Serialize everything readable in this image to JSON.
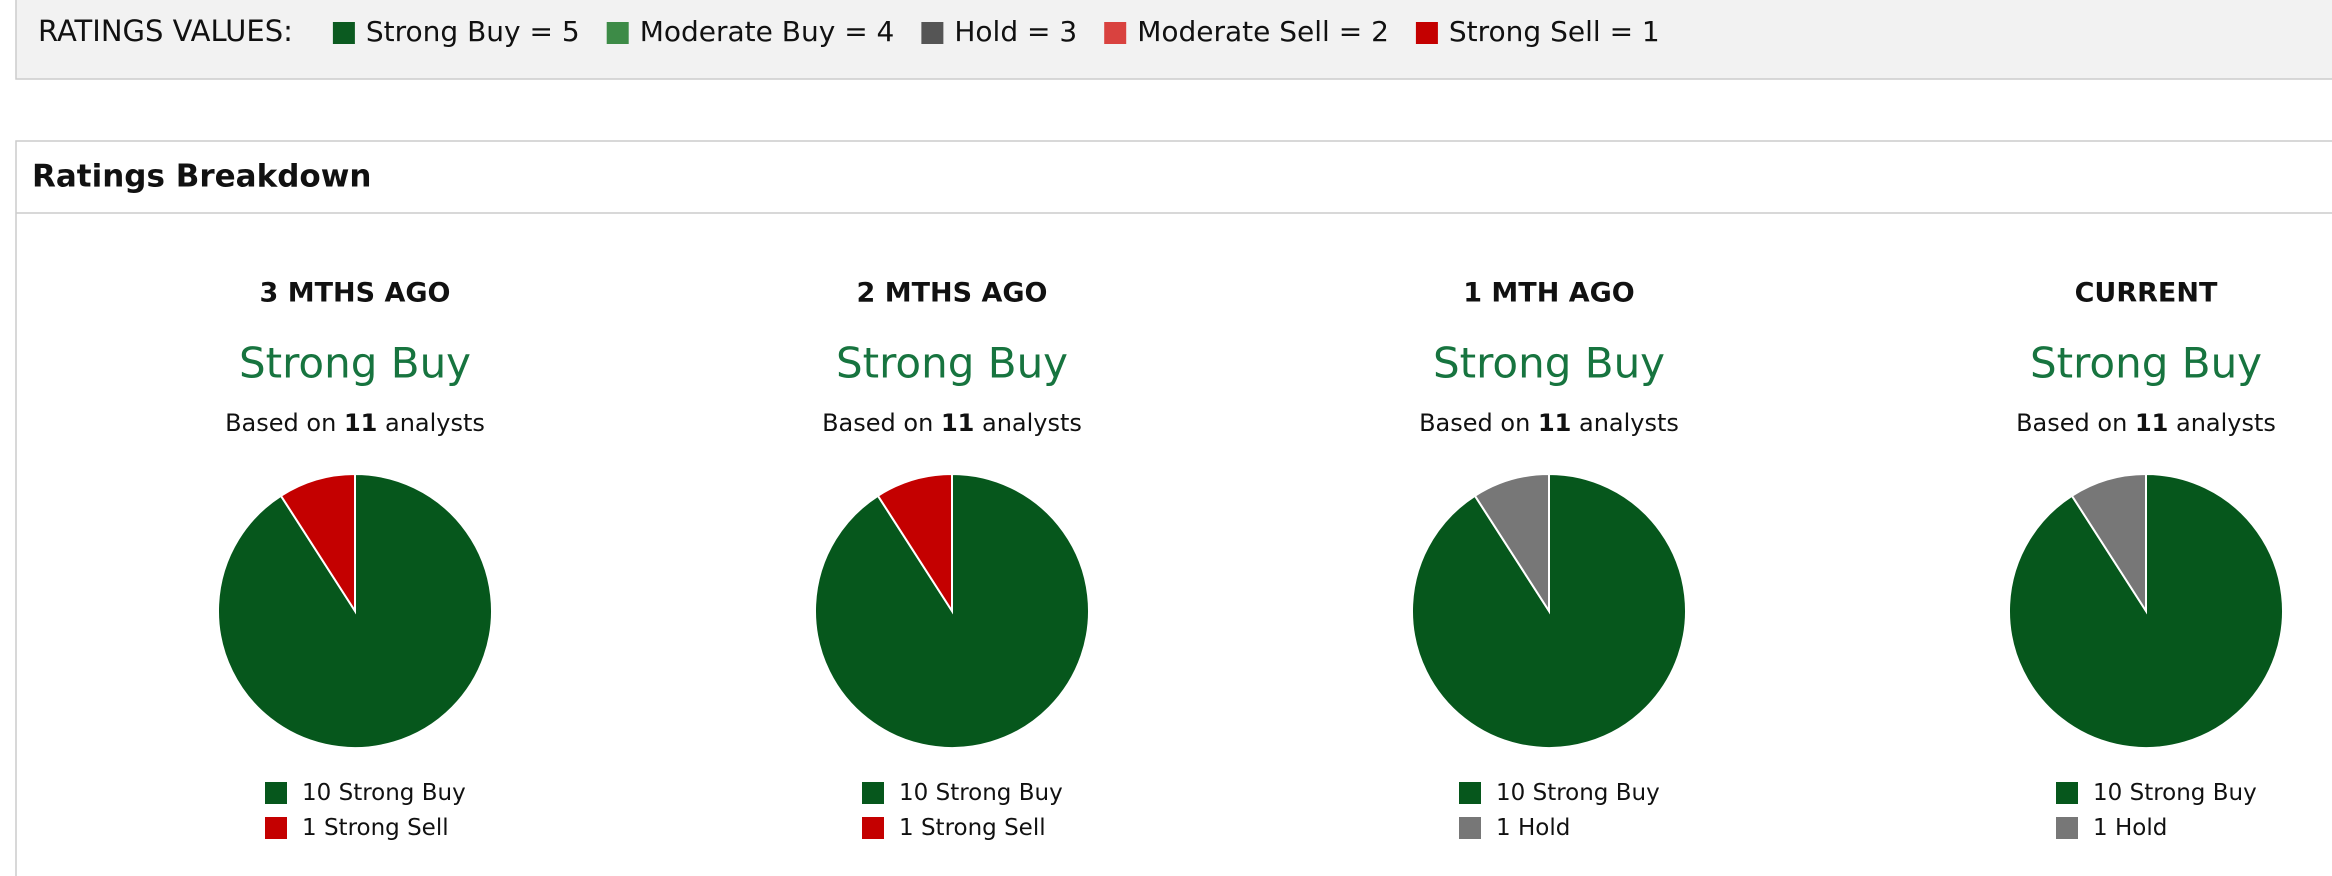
{
  "legend_bar": {
    "title": "RATINGS VALUES:",
    "items": [
      {
        "text": "Strong Buy = 5",
        "color": "#0b5a20"
      },
      {
        "text": "Moderate Buy = 4",
        "color": "#3d8b47"
      },
      {
        "text": "Hold = 3",
        "color": "#555555"
      },
      {
        "text": "Moderate Sell = 2",
        "color": "#d9423f"
      },
      {
        "text": "Strong Sell = 1",
        "color": "#c40000"
      }
    ]
  },
  "section_title": "Ratings Breakdown",
  "chart_data": [
    {
      "type": "pie",
      "title": "3 MTHS AGO",
      "rating": "Strong Buy",
      "based_on": "Based on",
      "analysts": 11,
      "analysts_word": "analysts",
      "categories": [
        "Strong Buy",
        "Strong Sell"
      ],
      "values": [
        10,
        1
      ],
      "colors": [
        "#06571c",
        "#c40000"
      ]
    },
    {
      "type": "pie",
      "title": "2 MTHS AGO",
      "rating": "Strong Buy",
      "based_on": "Based on",
      "analysts": 11,
      "analysts_word": "analysts",
      "categories": [
        "Strong Buy",
        "Strong Sell"
      ],
      "values": [
        10,
        1
      ],
      "colors": [
        "#06571c",
        "#c40000"
      ]
    },
    {
      "type": "pie",
      "title": "1 MTH AGO",
      "rating": "Strong Buy",
      "based_on": "Based on",
      "analysts": 11,
      "analysts_word": "analysts",
      "categories": [
        "Strong Buy",
        "Hold"
      ],
      "values": [
        10,
        1
      ],
      "colors": [
        "#06571c",
        "#777777"
      ]
    },
    {
      "type": "pie",
      "title": "CURRENT",
      "rating": "Strong Buy",
      "based_on": "Based on",
      "analysts": 11,
      "analysts_word": "analysts",
      "categories": [
        "Strong Buy",
        "Hold"
      ],
      "values": [
        10,
        1
      ],
      "colors": [
        "#06571c",
        "#777777"
      ]
    }
  ]
}
